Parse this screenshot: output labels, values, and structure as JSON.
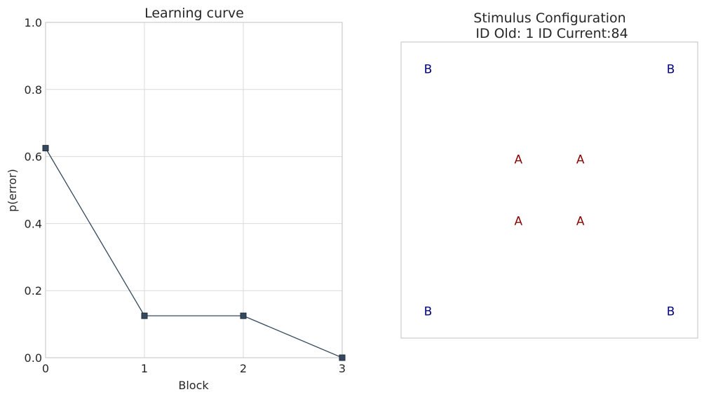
{
  "chart_data": [
    {
      "type": "line",
      "title": "Learning curve",
      "xlabel": "Block",
      "ylabel": "p(error)",
      "x": [
        0,
        1,
        2,
        3
      ],
      "series": [
        {
          "values": [
            0.625,
            0.125,
            0.125,
            0.0
          ]
        }
      ],
      "xlim": [
        0,
        3
      ],
      "ylim": [
        0,
        1
      ],
      "xticks": [
        "0",
        "1",
        "2",
        "3"
      ],
      "yticks": [
        "0.0",
        "0.2",
        "0.4",
        "0.6",
        "0.8",
        "1.0"
      ],
      "grid": true,
      "line_color": "#34495e",
      "marker": "square"
    },
    {
      "type": "scatter",
      "title_line1": "Stimulus Configuration",
      "title_line2": "ID Old: 1 ID Current:84",
      "xlim": [
        -1.1,
        1.1
      ],
      "ylim": [
        -1.1,
        1.1
      ],
      "grid": false,
      "points": [
        {
          "label": "B",
          "x": -0.9,
          "y": 0.9,
          "color": "#000080"
        },
        {
          "label": "B",
          "x": 0.9,
          "y": 0.9,
          "color": "#000080"
        },
        {
          "label": "A",
          "x": -0.23,
          "y": 0.23,
          "color": "#8b0000"
        },
        {
          "label": "A",
          "x": 0.23,
          "y": 0.23,
          "color": "#8b0000"
        },
        {
          "label": "A",
          "x": -0.23,
          "y": -0.23,
          "color": "#8b0000"
        },
        {
          "label": "A",
          "x": 0.23,
          "y": -0.23,
          "color": "#8b0000"
        },
        {
          "label": "B",
          "x": -0.9,
          "y": -0.9,
          "color": "#000080"
        },
        {
          "label": "B",
          "x": 0.9,
          "y": -0.9,
          "color": "#000080"
        }
      ]
    }
  ]
}
